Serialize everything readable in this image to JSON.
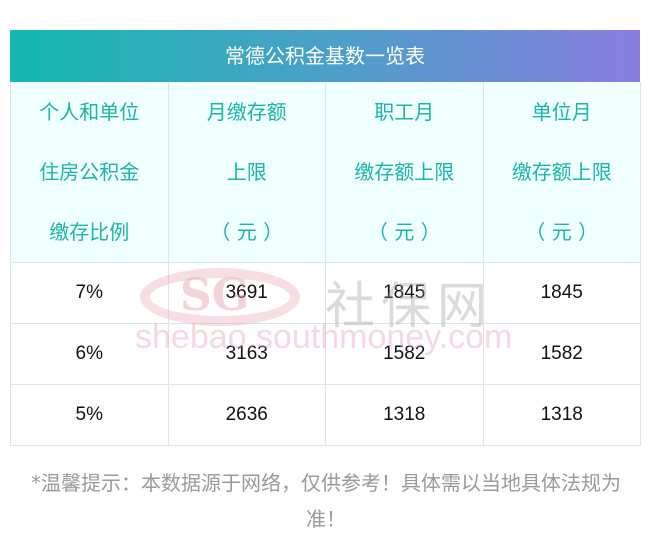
{
  "title": "常德公积金基数一览表",
  "header": [
    [
      "个人和单位",
      "住房公积金",
      "缴存比例"
    ],
    [
      "月缴存额",
      "上限",
      "（ 元 ）"
    ],
    [
      "职工月",
      "缴存额上限",
      "（ 元 ）"
    ],
    [
      "单位月",
      "缴存额上限",
      "（ 元 ）"
    ]
  ],
  "rows": [
    [
      "7%",
      "3691",
      "1845",
      "1845"
    ],
    [
      "6%",
      "3163",
      "1582",
      "1582"
    ],
    [
      "5%",
      "2636",
      "1318",
      "1318"
    ]
  ],
  "watermark": {
    "logo": "SG",
    "name": "社保网",
    "url": "shebao.southmoney.com"
  },
  "note": "*温馨提示：本数据源于网络，仅供参考！具体需以当地具体法规为准！",
  "colors": {
    "header_text": "#1ab4a8",
    "header_bg": "#f0ffff",
    "gradient_start": "#14b8ae",
    "gradient_end": "#8a7ee0"
  }
}
